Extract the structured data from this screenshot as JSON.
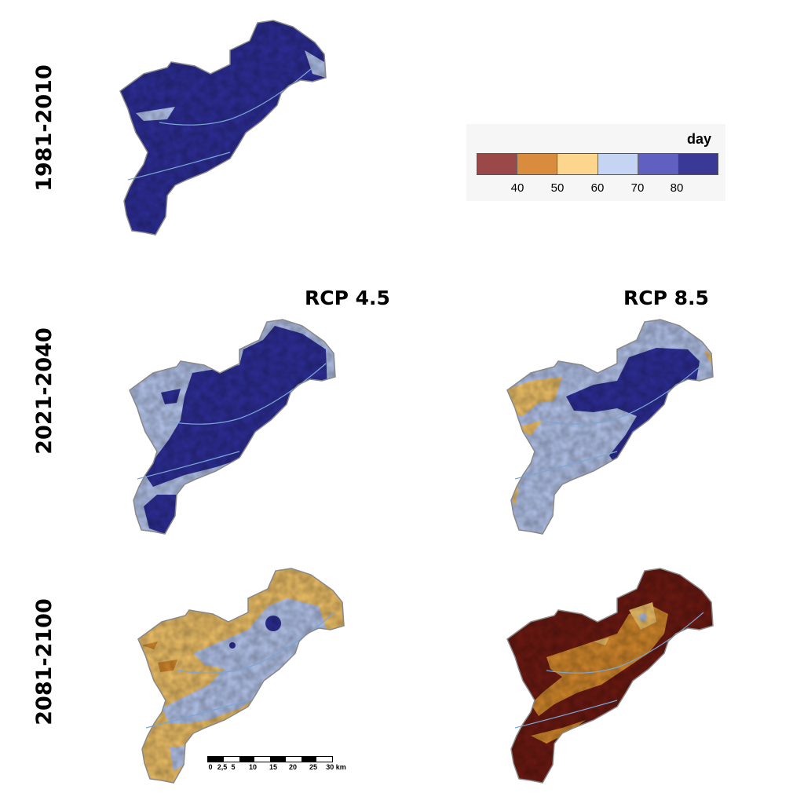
{
  "periods": {
    "p1": "1981-2010",
    "p2": "2021-2040",
    "p3": "2081-2100"
  },
  "scenarios": {
    "rcp45": "RCP 4.5",
    "rcp85": "RCP 8.5"
  },
  "legend": {
    "unit": "day",
    "ticks": [
      "40",
      "50",
      "60",
      "70",
      "80"
    ],
    "colors": [
      "#9a4848",
      "#d98c3e",
      "#fbd68c",
      "#c6d4f4",
      "#5f60c0",
      "#3a3a96"
    ]
  },
  "scale_bar": {
    "labels": [
      "0",
      "2,5",
      "5",
      "10",
      "15",
      "20",
      "25",
      "30 km"
    ]
  },
  "map_colors": {
    "dark_blue": "#2e2f9a",
    "light_blue": "#b8c8f0",
    "pale_yellow": "#f4c56a",
    "orange": "#d68a2c",
    "dark_red": "#6e1a12",
    "river": "#7aa6d6"
  }
}
